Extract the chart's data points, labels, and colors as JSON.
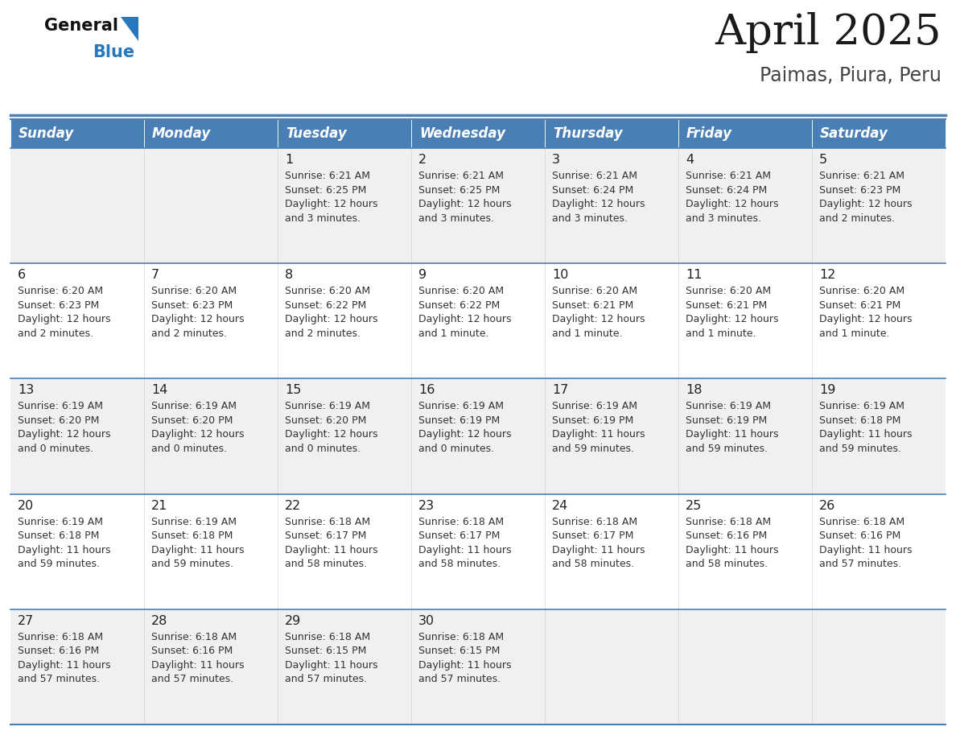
{
  "title": "April 2025",
  "subtitle": "Paimas, Piura, Peru",
  "header_bg": "#4a7fb5",
  "header_text_color": "#ffffff",
  "row_bg_light": "#f0f0f0",
  "row_bg_white": "#ffffff",
  "separator_color": "#4a7fb5",
  "day_names": [
    "Sunday",
    "Monday",
    "Tuesday",
    "Wednesday",
    "Thursday",
    "Friday",
    "Saturday"
  ],
  "weeks": [
    [
      {
        "day": "",
        "info": ""
      },
      {
        "day": "",
        "info": ""
      },
      {
        "day": "1",
        "info": "Sunrise: 6:21 AM\nSunset: 6:25 PM\nDaylight: 12 hours\nand 3 minutes."
      },
      {
        "day": "2",
        "info": "Sunrise: 6:21 AM\nSunset: 6:25 PM\nDaylight: 12 hours\nand 3 minutes."
      },
      {
        "day": "3",
        "info": "Sunrise: 6:21 AM\nSunset: 6:24 PM\nDaylight: 12 hours\nand 3 minutes."
      },
      {
        "day": "4",
        "info": "Sunrise: 6:21 AM\nSunset: 6:24 PM\nDaylight: 12 hours\nand 3 minutes."
      },
      {
        "day": "5",
        "info": "Sunrise: 6:21 AM\nSunset: 6:23 PM\nDaylight: 12 hours\nand 2 minutes."
      }
    ],
    [
      {
        "day": "6",
        "info": "Sunrise: 6:20 AM\nSunset: 6:23 PM\nDaylight: 12 hours\nand 2 minutes."
      },
      {
        "day": "7",
        "info": "Sunrise: 6:20 AM\nSunset: 6:23 PM\nDaylight: 12 hours\nand 2 minutes."
      },
      {
        "day": "8",
        "info": "Sunrise: 6:20 AM\nSunset: 6:22 PM\nDaylight: 12 hours\nand 2 minutes."
      },
      {
        "day": "9",
        "info": "Sunrise: 6:20 AM\nSunset: 6:22 PM\nDaylight: 12 hours\nand 1 minute."
      },
      {
        "day": "10",
        "info": "Sunrise: 6:20 AM\nSunset: 6:21 PM\nDaylight: 12 hours\nand 1 minute."
      },
      {
        "day": "11",
        "info": "Sunrise: 6:20 AM\nSunset: 6:21 PM\nDaylight: 12 hours\nand 1 minute."
      },
      {
        "day": "12",
        "info": "Sunrise: 6:20 AM\nSunset: 6:21 PM\nDaylight: 12 hours\nand 1 minute."
      }
    ],
    [
      {
        "day": "13",
        "info": "Sunrise: 6:19 AM\nSunset: 6:20 PM\nDaylight: 12 hours\nand 0 minutes."
      },
      {
        "day": "14",
        "info": "Sunrise: 6:19 AM\nSunset: 6:20 PM\nDaylight: 12 hours\nand 0 minutes."
      },
      {
        "day": "15",
        "info": "Sunrise: 6:19 AM\nSunset: 6:20 PM\nDaylight: 12 hours\nand 0 minutes."
      },
      {
        "day": "16",
        "info": "Sunrise: 6:19 AM\nSunset: 6:19 PM\nDaylight: 12 hours\nand 0 minutes."
      },
      {
        "day": "17",
        "info": "Sunrise: 6:19 AM\nSunset: 6:19 PM\nDaylight: 11 hours\nand 59 minutes."
      },
      {
        "day": "18",
        "info": "Sunrise: 6:19 AM\nSunset: 6:19 PM\nDaylight: 11 hours\nand 59 minutes."
      },
      {
        "day": "19",
        "info": "Sunrise: 6:19 AM\nSunset: 6:18 PM\nDaylight: 11 hours\nand 59 minutes."
      }
    ],
    [
      {
        "day": "20",
        "info": "Sunrise: 6:19 AM\nSunset: 6:18 PM\nDaylight: 11 hours\nand 59 minutes."
      },
      {
        "day": "21",
        "info": "Sunrise: 6:19 AM\nSunset: 6:18 PM\nDaylight: 11 hours\nand 59 minutes."
      },
      {
        "day": "22",
        "info": "Sunrise: 6:18 AM\nSunset: 6:17 PM\nDaylight: 11 hours\nand 58 minutes."
      },
      {
        "day": "23",
        "info": "Sunrise: 6:18 AM\nSunset: 6:17 PM\nDaylight: 11 hours\nand 58 minutes."
      },
      {
        "day": "24",
        "info": "Sunrise: 6:18 AM\nSunset: 6:17 PM\nDaylight: 11 hours\nand 58 minutes."
      },
      {
        "day": "25",
        "info": "Sunrise: 6:18 AM\nSunset: 6:16 PM\nDaylight: 11 hours\nand 58 minutes."
      },
      {
        "day": "26",
        "info": "Sunrise: 6:18 AM\nSunset: 6:16 PM\nDaylight: 11 hours\nand 57 minutes."
      }
    ],
    [
      {
        "day": "27",
        "info": "Sunrise: 6:18 AM\nSunset: 6:16 PM\nDaylight: 11 hours\nand 57 minutes."
      },
      {
        "day": "28",
        "info": "Sunrise: 6:18 AM\nSunset: 6:16 PM\nDaylight: 11 hours\nand 57 minutes."
      },
      {
        "day": "29",
        "info": "Sunrise: 6:18 AM\nSunset: 6:15 PM\nDaylight: 11 hours\nand 57 minutes."
      },
      {
        "day": "30",
        "info": "Sunrise: 6:18 AM\nSunset: 6:15 PM\nDaylight: 11 hours\nand 57 minutes."
      },
      {
        "day": "",
        "info": ""
      },
      {
        "day": "",
        "info": ""
      },
      {
        "day": "",
        "info": ""
      }
    ]
  ],
  "logo_triangle_color": "#2878be",
  "title_fontsize": 38,
  "subtitle_fontsize": 17,
  "header_fontsize": 12,
  "day_num_fontsize": 11.5,
  "info_fontsize": 9.0
}
